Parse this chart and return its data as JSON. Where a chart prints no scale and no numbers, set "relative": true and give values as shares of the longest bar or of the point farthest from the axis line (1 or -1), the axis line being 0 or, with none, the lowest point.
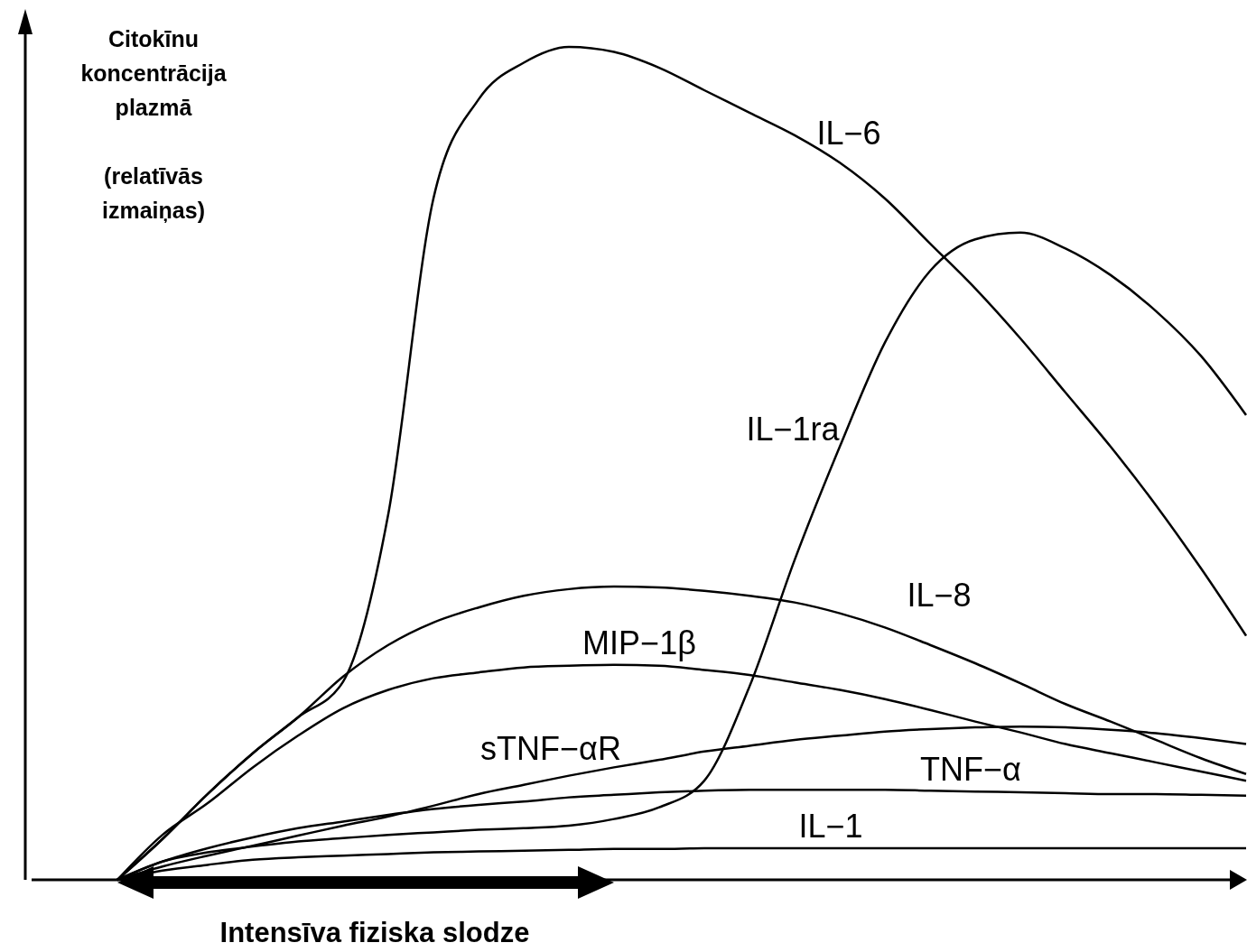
{
  "chart_data": {
    "type": "line",
    "relative": true,
    "xlabel": "Intensīva fiziska slodze",
    "ylabel": "Citokīnu\nkoncentrācija\nplazmā\n\n(relatīvās\nizmaiņas)",
    "categories": [
      null,
      null,
      null,
      null,
      null,
      null,
      null,
      null,
      null,
      null,
      null,
      null,
      null,
      null,
      null,
      null,
      null,
      null,
      null,
      null,
      null,
      null,
      null,
      null,
      null,
      null
    ],
    "series": [
      {
        "name": "IL−6",
        "color": "#000000",
        "values": [
          0,
          0.049,
          0.103,
          0.152,
          0.195,
          0.238,
          0.439,
          0.818,
          0.937,
          0.981,
          1.0,
          0.994,
          0.975,
          0.948,
          0.921,
          0.894,
          0.861,
          0.818,
          0.764,
          0.71,
          0.65,
          0.585,
          0.52,
          0.45,
          0.374,
          0.293
        ]
      },
      {
        "name": "IL−1ra",
        "color": "#000000",
        "values": [
          0,
          0.022,
          0.033,
          0.04,
          0.046,
          0.05,
          0.054,
          0.057,
          0.06,
          0.062,
          0.065,
          0.073,
          0.087,
          0.119,
          0.232,
          0.384,
          0.52,
          0.645,
          0.731,
          0.769,
          0.777,
          0.758,
          0.726,
          0.683,
          0.629,
          0.558
        ]
      },
      {
        "name": "IL−8",
        "color": "#000000",
        "values": [
          0,
          0.049,
          0.103,
          0.152,
          0.195,
          0.244,
          0.282,
          0.309,
          0.327,
          0.341,
          0.349,
          0.352,
          0.351,
          0.347,
          0.341,
          0.333,
          0.32,
          0.303,
          0.282,
          0.26,
          0.236,
          0.211,
          0.19,
          0.168,
          0.146,
          0.127
        ]
      },
      {
        "name": "MIP−1β",
        "color": "#000000",
        "values": [
          0,
          0.054,
          0.092,
          0.135,
          0.173,
          0.206,
          0.228,
          0.242,
          0.249,
          0.255,
          0.257,
          0.258,
          0.257,
          0.252,
          0.246,
          0.237,
          0.228,
          0.217,
          0.204,
          0.19,
          0.177,
          0.163,
          0.152,
          0.141,
          0.13,
          0.119
        ]
      },
      {
        "name": "sTNF−αR",
        "color": "#000000",
        "values": [
          0,
          0.016,
          0.029,
          0.041,
          0.053,
          0.065,
          0.076,
          0.089,
          0.103,
          0.114,
          0.125,
          0.135,
          0.144,
          0.154,
          0.161,
          0.168,
          0.173,
          0.178,
          0.181,
          0.183,
          0.184,
          0.183,
          0.18,
          0.176,
          0.17,
          0.163
        ]
      },
      {
        "name": "TNF−α",
        "color": "#000000",
        "values": [
          0,
          0.022,
          0.038,
          0.051,
          0.062,
          0.07,
          0.078,
          0.085,
          0.09,
          0.094,
          0.099,
          0.102,
          0.105,
          0.107,
          0.108,
          0.108,
          0.108,
          0.108,
          0.107,
          0.106,
          0.105,
          0.104,
          0.103,
          0.103,
          0.102,
          0.101
        ]
      },
      {
        "name": "IL−1",
        "color": "#000000",
        "values": [
          0,
          0.011,
          0.018,
          0.024,
          0.027,
          0.029,
          0.031,
          0.033,
          0.034,
          0.035,
          0.036,
          0.037,
          0.037,
          0.038,
          0.038,
          0.038,
          0.038,
          0.038,
          0.038,
          0.038,
          0.038,
          0.038,
          0.038,
          0.038,
          0.038,
          0.038
        ]
      }
    ]
  }
}
